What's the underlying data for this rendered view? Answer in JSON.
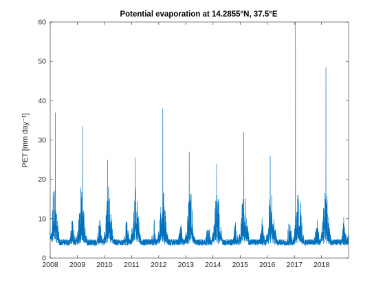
{
  "chart_data": {
    "type": "line",
    "title": "Potential evaporation at 14.2855°N, 37.5°E",
    "ylabel": "PET [mm day⁻¹]",
    "xlabel": "",
    "x_range": [
      "2008-01-01",
      "2018-12-31"
    ],
    "ylim": [
      0,
      60
    ],
    "x_ticks": [
      "2008",
      "2009",
      "2010",
      "2011",
      "2012",
      "2013",
      "2014",
      "2015",
      "2016",
      "2017",
      "2018"
    ],
    "y_ticks": [
      "0",
      "10",
      "20",
      "30",
      "40",
      "50",
      "60"
    ],
    "grid": false,
    "legend": "none",
    "line_color": "#0072BD",
    "series": [
      {
        "baseline_mm_day": 4,
        "annual_peaks": [
          {
            "date": "2008-03-10",
            "value": 37
          },
          {
            "date": "2009-03-15",
            "value": 33.5
          },
          {
            "date": "2010-02-10",
            "value": 25
          },
          {
            "date": "2011-02-20",
            "value": 25.5
          },
          {
            "date": "2012-02-25",
            "value": 38
          },
          {
            "date": "2013-02-15",
            "value": 27
          },
          {
            "date": "2014-02-20",
            "value": 24
          },
          {
            "date": "2015-02-20",
            "value": 32
          },
          {
            "date": "2016-02-10",
            "value": 26
          },
          {
            "date": "2017-01-15",
            "value": 60
          },
          {
            "date": "2018-03-01",
            "value": 48.5
          }
        ]
      }
    ]
  }
}
